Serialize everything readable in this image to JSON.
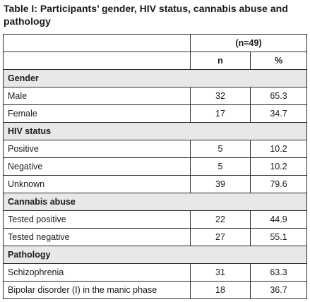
{
  "caption": "Table I: Participants’ gender, HIV status, cannabis abuse and pathology",
  "n_total": "(n=49)",
  "col_n": "n",
  "col_pct": "%",
  "sections": [
    {
      "title": "Gender",
      "rows": [
        {
          "label": "Male",
          "n": "32",
          "pct": "65.3"
        },
        {
          "label": "Female",
          "n": "17",
          "pct": "34.7"
        }
      ]
    },
    {
      "title": "HIV status",
      "rows": [
        {
          "label": "Positive",
          "n": "5",
          "pct": "10.2"
        },
        {
          "label": "Negative",
          "n": "5",
          "pct": "10.2"
        },
        {
          "label": "Unknown",
          "n": "39",
          "pct": "79.6"
        }
      ]
    },
    {
      "title": "Cannabis abuse",
      "rows": [
        {
          "label": "Tested positive",
          "n": "22",
          "pct": "44.9"
        },
        {
          "label": "Tested negative",
          "n": "27",
          "pct": "55.1"
        }
      ]
    },
    {
      "title": "Pathology",
      "rows": [
        {
          "label": "Schizophrenia",
          "n": "31",
          "pct": "63.3"
        },
        {
          "label": "Bipolar disorder (I) in the manic phase",
          "n": "18",
          "pct": "36.7"
        }
      ]
    }
  ]
}
